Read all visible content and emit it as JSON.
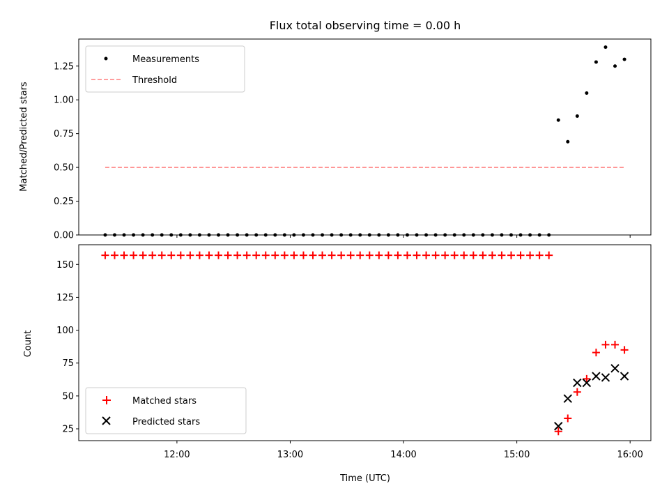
{
  "chart_data": [
    {
      "type": "scatter",
      "title": "Flux total observing time = 0.00 h",
      "xlabel": "",
      "ylabel": "Matched/Predicted stars",
      "ylim": [
        0,
        1.45
      ],
      "yticks": [
        "0.00",
        "0.25",
        "0.50",
        "0.75",
        "1.00",
        "1.25"
      ],
      "legend_position": "top-left",
      "series": [
        {
          "name": "Measurements",
          "kind": "scatter",
          "color": "#000000",
          "x": [
            "11:22",
            "11:27",
            "11:32",
            "11:37",
            "11:42",
            "11:47",
            "11:52",
            "11:57",
            "12:02",
            "12:07",
            "12:12",
            "12:17",
            "12:22",
            "12:27",
            "12:32",
            "12:37",
            "12:42",
            "12:47",
            "12:52",
            "12:57",
            "13:02",
            "13:07",
            "13:12",
            "13:17",
            "13:22",
            "13:27",
            "13:32",
            "13:37",
            "13:42",
            "13:47",
            "13:52",
            "13:57",
            "14:02",
            "14:07",
            "14:12",
            "14:17",
            "14:22",
            "14:27",
            "14:32",
            "14:37",
            "14:42",
            "14:47",
            "14:52",
            "14:57",
            "15:02",
            "15:07",
            "15:12",
            "15:17",
            "15:22",
            "15:27",
            "15:32",
            "15:37",
            "15:42",
            "15:47",
            "15:52",
            "15:57"
          ],
          "y": [
            0,
            0,
            0,
            0,
            0,
            0,
            0,
            0,
            0,
            0,
            0,
            0,
            0,
            0,
            0,
            0,
            0,
            0,
            0,
            0,
            0,
            0,
            0,
            0,
            0,
            0,
            0,
            0,
            0,
            0,
            0,
            0,
            0,
            0,
            0,
            0,
            0,
            0,
            0,
            0,
            0,
            0,
            0,
            0,
            0,
            0,
            0,
            0,
            0.85,
            0.69,
            0.88,
            1.05,
            1.28,
            1.39,
            1.25,
            1.3
          ]
        },
        {
          "name": "Threshold",
          "kind": "line",
          "color": "#ff7f7f",
          "x": [
            "11:22",
            "15:57"
          ],
          "y": [
            0.5,
            0.5
          ]
        }
      ]
    },
    {
      "type": "scatter",
      "title": "",
      "xlabel": "Time (UTC)",
      "ylabel": "Count",
      "ylim": [
        16,
        165
      ],
      "yticks": [
        "25",
        "50",
        "75",
        "100",
        "125",
        "150"
      ],
      "xticks": [
        "12:00",
        "13:00",
        "14:00",
        "15:00",
        "16:00"
      ],
      "xlim": [
        "11:08",
        "16:11"
      ],
      "legend_position": "bottom-left",
      "series": [
        {
          "name": "Matched stars",
          "kind": "plus",
          "color": "#ff0000",
          "x": [
            "11:22",
            "11:27",
            "11:32",
            "11:37",
            "11:42",
            "11:47",
            "11:52",
            "11:57",
            "12:02",
            "12:07",
            "12:12",
            "12:17",
            "12:22",
            "12:27",
            "12:32",
            "12:37",
            "12:42",
            "12:47",
            "12:52",
            "12:57",
            "13:02",
            "13:07",
            "13:12",
            "13:17",
            "13:22",
            "13:27",
            "13:32",
            "13:37",
            "13:42",
            "13:47",
            "13:52",
            "13:57",
            "14:02",
            "14:07",
            "14:12",
            "14:17",
            "14:22",
            "14:27",
            "14:32",
            "14:37",
            "14:42",
            "14:47",
            "14:52",
            "14:57",
            "15:02",
            "15:07",
            "15:12",
            "15:17",
            "15:22",
            "15:27",
            "15:32",
            "15:37",
            "15:42",
            "15:47",
            "15:52",
            "15:57"
          ],
          "y": [
            157,
            157,
            157,
            157,
            157,
            157,
            157,
            157,
            157,
            157,
            157,
            157,
            157,
            157,
            157,
            157,
            157,
            157,
            157,
            157,
            157,
            157,
            157,
            157,
            157,
            157,
            157,
            157,
            157,
            157,
            157,
            157,
            157,
            157,
            157,
            157,
            157,
            157,
            157,
            157,
            157,
            157,
            157,
            157,
            157,
            157,
            157,
            157,
            23,
            33,
            53,
            63,
            83,
            89,
            89,
            85
          ]
        },
        {
          "name": "Predicted stars",
          "kind": "x",
          "color": "#000000",
          "x": [
            "15:22",
            "15:27",
            "15:32",
            "15:37",
            "15:42",
            "15:47",
            "15:52",
            "15:57"
          ],
          "y": [
            27,
            48,
            60,
            60,
            65,
            64,
            71,
            65
          ]
        }
      ]
    }
  ]
}
